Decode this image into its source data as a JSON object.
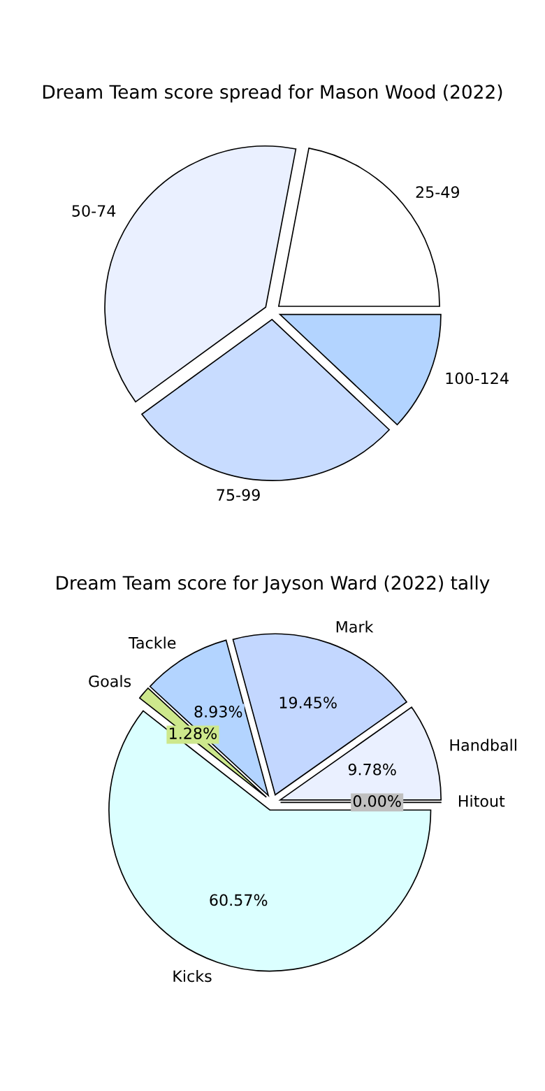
{
  "chart_data": [
    {
      "type": "pie",
      "title": "Dream Team score spread for Mason Wood (2022)",
      "categories": [
        "25-49",
        "50-74",
        "75-99",
        "100-124"
      ],
      "values": [
        22,
        38,
        28,
        12
      ],
      "colors": [
        "#ffffff",
        "#eaf0ff",
        "#c8dcff",
        "#b3d4ff"
      ]
    },
    {
      "type": "pie",
      "title": "Dream Team score for Jayson Ward (2022) tally",
      "categories": [
        "Hitout",
        "Handball",
        "Mark",
        "Tackle",
        "Goals",
        "Kicks"
      ],
      "values": [
        0.0,
        9.78,
        19.45,
        8.93,
        1.28,
        60.57
      ],
      "colors": [
        "#c0c0c0",
        "#eaf0ff",
        "#c3d7ff",
        "#b3d4ff",
        "#cde88c",
        "#dbffff"
      ],
      "value_labels": [
        "0.00%",
        "9.78%",
        "19.45%",
        "8.93%",
        "1.28%",
        "60.57%"
      ]
    }
  ]
}
